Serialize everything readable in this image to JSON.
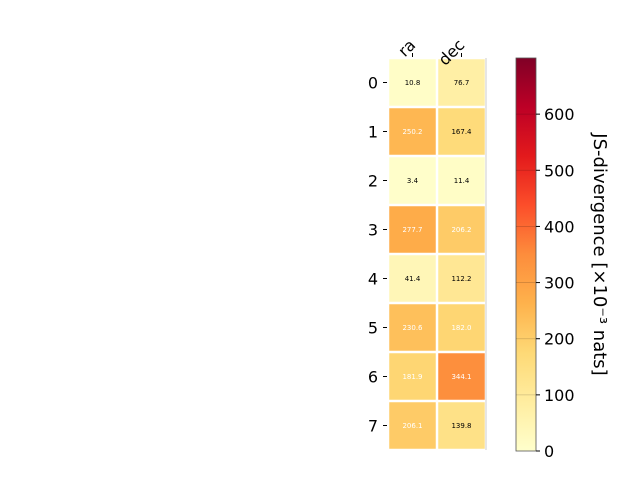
{
  "chart_data": {
    "type": "heatmap",
    "columns": [
      "ra",
      "dec"
    ],
    "rows": [
      "0",
      "1",
      "2",
      "3",
      "4",
      "5",
      "6",
      "7"
    ],
    "values": [
      [
        10.8,
        76.7
      ],
      [
        250.2,
        167.4
      ],
      [
        3.4,
        11.4
      ],
      [
        277.7,
        206.2
      ],
      [
        41.4,
        112.2
      ],
      [
        230.6,
        182.0
      ],
      [
        181.9,
        344.1
      ],
      [
        206.1,
        139.8
      ]
    ],
    "value_labels": [
      [
        "10.8",
        "76.7"
      ],
      [
        "250.2",
        "167.4"
      ],
      [
        "3.4",
        "11.4"
      ],
      [
        "277.7",
        "206.2"
      ],
      [
        "41.4",
        "112.2"
      ],
      [
        "230.6",
        "182.0"
      ],
      [
        "181.9",
        "344.1"
      ],
      [
        "206.1",
        "139.8"
      ]
    ],
    "colorbar": {
      "label": "JS-divergence [×10⁻³ nats]",
      "min": 0,
      "max": 700,
      "ticks": [
        0,
        100,
        200,
        300,
        400,
        500,
        600
      ],
      "colormap": "YlOrRd",
      "colormap_stops": [
        "#ffffcc",
        "#ffeda0",
        "#fed976",
        "#feb24c",
        "#fd8d3c",
        "#fc4e2a",
        "#e31a1c",
        "#bd0026",
        "#800026"
      ]
    },
    "label_colors": {
      "dark": "#000000",
      "light": "#ffffff"
    },
    "grid": false,
    "legend": "none"
  }
}
